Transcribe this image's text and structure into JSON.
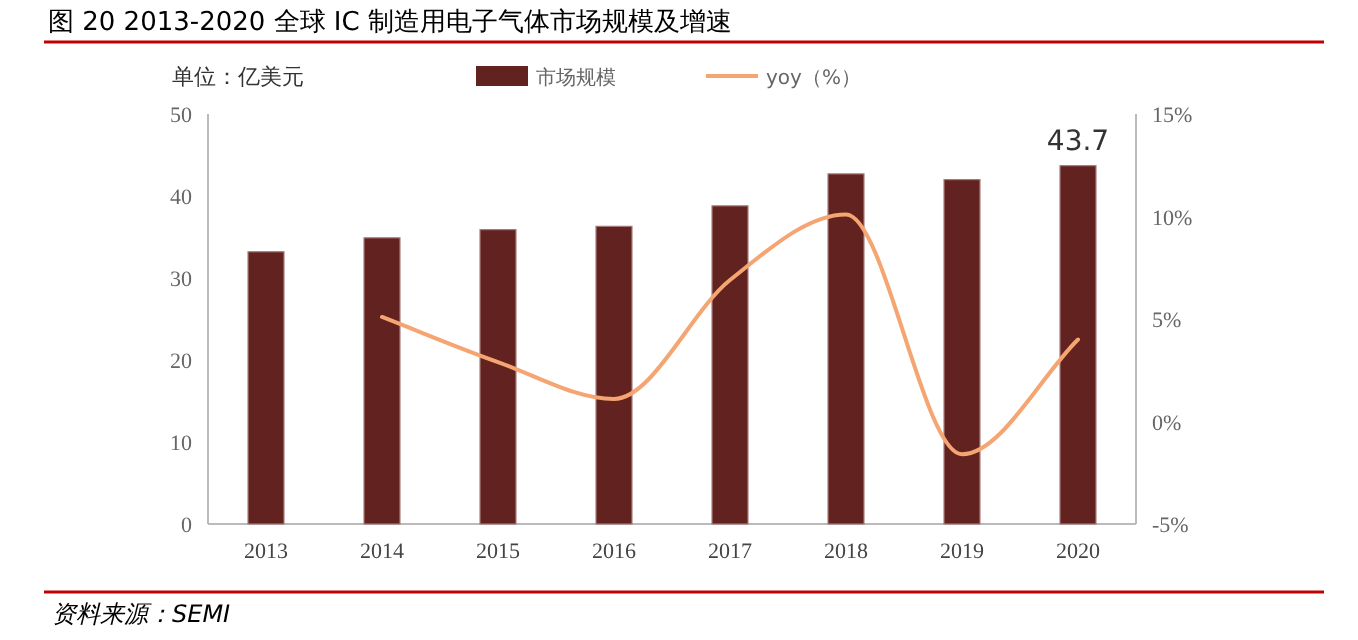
{
  "chart_data": {
    "type": "bar",
    "title": "图  20 2013-2020 全球 IC 制造用电子气体市场规模及增速",
    "categories": [
      "2013",
      "2014",
      "2015",
      "2016",
      "2017",
      "2018",
      "2019",
      "2020"
    ],
    "series": [
      {
        "name": "市场规模",
        "color": "#62221f",
        "values": [
          33.2,
          34.9,
          35.9,
          36.3,
          38.8,
          42.7,
          42.0,
          43.7
        ],
        "value_labels": [
          null,
          null,
          null,
          null,
          null,
          null,
          null,
          "43.7"
        ]
      },
      {
        "name": "yoy（%）",
        "type": "line",
        "axis": "y2",
        "color": "#f4a571",
        "values": [
          null,
          5.1,
          2.9,
          1.1,
          6.9,
          10.1,
          -1.6,
          4.0
        ]
      }
    ],
    "ylim": [
      0,
      50
    ],
    "yticks": [
      0,
      10,
      20,
      30,
      40,
      50
    ],
    "y2lim": [
      -5,
      15
    ],
    "y2ticks": [
      {
        "value": -5,
        "label": "-5%"
      },
      {
        "value": 0,
        "label": "0%"
      },
      {
        "value": 5,
        "label": "5%"
      },
      {
        "value": 10,
        "label": "10%"
      },
      {
        "value": 15,
        "label": "15%"
      }
    ],
    "legend": "top",
    "grid": false,
    "annotations": [
      "单位：亿美元",
      "资料来源：SEMI"
    ]
  }
}
